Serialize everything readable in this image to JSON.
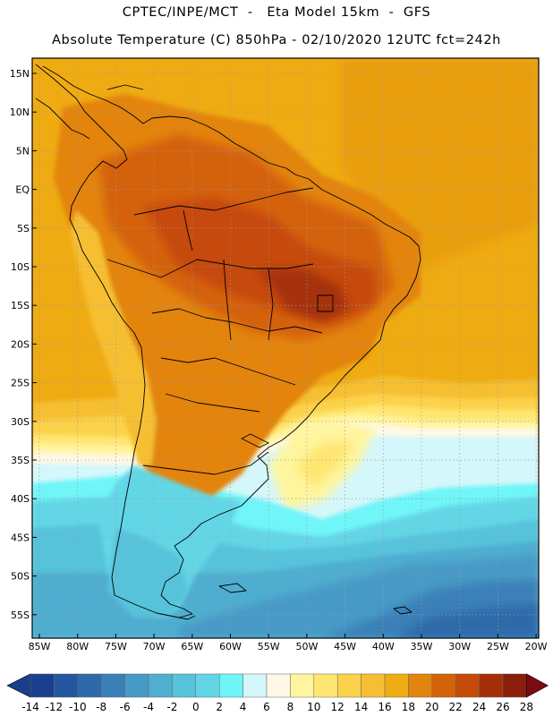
{
  "header": {
    "line1": "CPTEC/INPE/MCT  -   Eta Model 15km  -  GFS",
    "line2": "Absolute Temperature (C) 850hPa - 02/10/2020 12UTC fct=242h"
  },
  "map": {
    "lat_labels": [
      "15N",
      "10N",
      "5N",
      "EQ",
      "5S",
      "10S",
      "15S",
      "20S",
      "25S",
      "30S",
      "35S",
      "40S",
      "45S",
      "50S",
      "55S"
    ],
    "lon_labels": [
      "85W",
      "80W",
      "75W",
      "70W",
      "65W",
      "60W",
      "55W",
      "50W",
      "45W",
      "40W",
      "35W",
      "30W",
      "25W",
      "20W"
    ]
  },
  "colorbar": {
    "labels": [
      "-14",
      "-12",
      "-10",
      "-8",
      "-6",
      "-4",
      "-2",
      "0",
      "2",
      "4",
      "6",
      "8",
      "10",
      "12",
      "14",
      "16",
      "18",
      "20",
      "22",
      "24",
      "26",
      "28"
    ],
    "colors": [
      "#1b3f8f",
      "#24579f",
      "#2e6aaa",
      "#3a80b8",
      "#479ac6",
      "#50aed0",
      "#57c3db",
      "#63d6e6",
      "#6ff5f8",
      "#d4f7fb",
      "#fff8e6",
      "#fff59e",
      "#ffe672",
      "#fcd24c",
      "#f6bf31",
      "#efab12",
      "#e3840c",
      "#d46208",
      "#c64a08",
      "#a53008",
      "#8a1e0a"
    ],
    "under_color": "#1a3d8c",
    "over_color": "#7a0b14"
  }
}
